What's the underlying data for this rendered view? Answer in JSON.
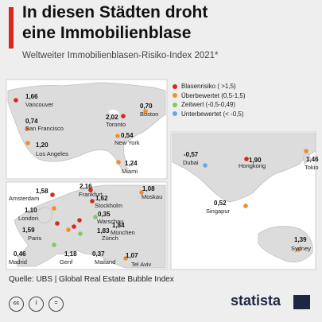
{
  "header": {
    "title_line1": "In diesen Städten droht",
    "title_line2": "eine Immobilienblase",
    "subtitle": "Weltweiter Immobilienblasen-Risiko-Index 2021*",
    "accent_color": "#d7281f"
  },
  "legend": [
    {
      "label": "Blasenrisiko ( >1,5)",
      "color": "#d7281f"
    },
    {
      "label": "Überbewertet (0,5-1,5)",
      "color": "#f08e2c"
    },
    {
      "label": "Zeitwert (-0,5-0,49)",
      "color": "#86c761"
    },
    {
      "label": "Unterbewertet (< -0,5)",
      "color": "#6aa8de"
    }
  ],
  "panels": {
    "north_america": [
      {
        "city": "Vancouver",
        "value": "1,66",
        "category": 0
      },
      {
        "city": "Toronto",
        "value": "2,02",
        "category": 0
      },
      {
        "city": "Boston",
        "value": "0,70",
        "category": 1
      },
      {
        "city": "San Francisco",
        "value": "0,74",
        "category": 1
      },
      {
        "city": "New York",
        "value": "0,54",
        "category": 1
      },
      {
        "city": "Los Angeles",
        "value": "1,20",
        "category": 1
      },
      {
        "city": "Miami",
        "value": "1,24",
        "category": 1
      }
    ],
    "europe": [
      {
        "city": "Amsterdam",
        "value": "1,58",
        "category": 0
      },
      {
        "city": "Frankfurt",
        "value": "2,16",
        "category": 0
      },
      {
        "city": "Moskau",
        "value": "1,08",
        "category": 1
      },
      {
        "city": "Stockholm",
        "value": "1,62",
        "category": 0
      },
      {
        "city": "London",
        "value": "1,10",
        "category": 1
      },
      {
        "city": "Warschau",
        "value": "0,35",
        "category": 2
      },
      {
        "city": "Paris",
        "value": "1,59",
        "category": 0
      },
      {
        "city": "Zürich",
        "value": "1,83",
        "category": 0
      },
      {
        "city": "München",
        "value": "1,84",
        "category": 0
      },
      {
        "city": "Madrid",
        "value": "0,46",
        "category": 2
      },
      {
        "city": "Genf",
        "value": "1,18",
        "category": 1
      },
      {
        "city": "Mailand",
        "value": "0,37",
        "category": 2
      },
      {
        "city": "Tel Aviv",
        "value": "1,07",
        "category": 1
      }
    ],
    "asia_pacific": [
      {
        "city": "Dubai",
        "value": "-0,57",
        "category": 3
      },
      {
        "city": "Hongkong",
        "value": "1,90",
        "category": 0
      },
      {
        "city": "Tokio",
        "value": "1,46",
        "category": 1
      },
      {
        "city": "Singapur",
        "value": "0,52",
        "category": 1
      },
      {
        "city": "Sydney",
        "value": "1,39",
        "category": 1
      }
    ]
  },
  "footer": {
    "source": "Quelle: UBS | Global Real Estate Bubble Index",
    "license_icons": [
      "cc-icon",
      "by-icon",
      "equals-icon"
    ],
    "brand": "statista"
  }
}
